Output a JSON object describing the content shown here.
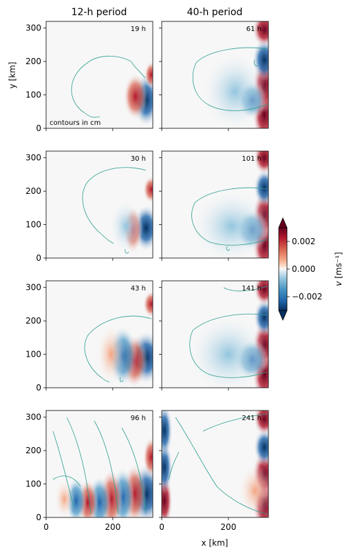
{
  "chart_data": {
    "type": "heatmap",
    "column_titles": [
      "12-h period",
      "40-h period"
    ],
    "ylabel": "y [km]",
    "xlabel": "x [km]",
    "annotation": "contours in cm",
    "colorbar": {
      "label": "v [ms⁻¹]",
      "label_symbol": "v",
      "label_unit": "[ms⁻¹]",
      "range": [
        -0.003,
        0.003
      ],
      "ticks": [
        -0.002,
        0.0,
        0.002
      ],
      "tick_labels": [
        "−0.002",
        "0.000",
        "0.002"
      ],
      "colormap": "RdBu_r",
      "extend": "both",
      "colors": {
        "low": "#053061",
        "mid": "#f7f7f7",
        "high": "#67001f"
      }
    },
    "x_range": [
      0,
      320
    ],
    "y_range": [
      0,
      320
    ],
    "x_ticks": [
      0,
      200
    ],
    "y_ticks": [
      0,
      100,
      200,
      300
    ],
    "contour_color": "#2a9d8f",
    "panels": [
      {
        "row": 0,
        "col": 0,
        "time": "19 h"
      },
      {
        "row": 0,
        "col": 1,
        "time": "61 h"
      },
      {
        "row": 1,
        "col": 0,
        "time": "30 h"
      },
      {
        "row": 1,
        "col": 1,
        "time": "101 h"
      },
      {
        "row": 2,
        "col": 0,
        "time": "43 h"
      },
      {
        "row": 2,
        "col": 1,
        "time": "141 h"
      },
      {
        "row": 3,
        "col": 0,
        "time": "96 h"
      },
      {
        "row": 3,
        "col": 1,
        "time": "241 h"
      }
    ]
  }
}
